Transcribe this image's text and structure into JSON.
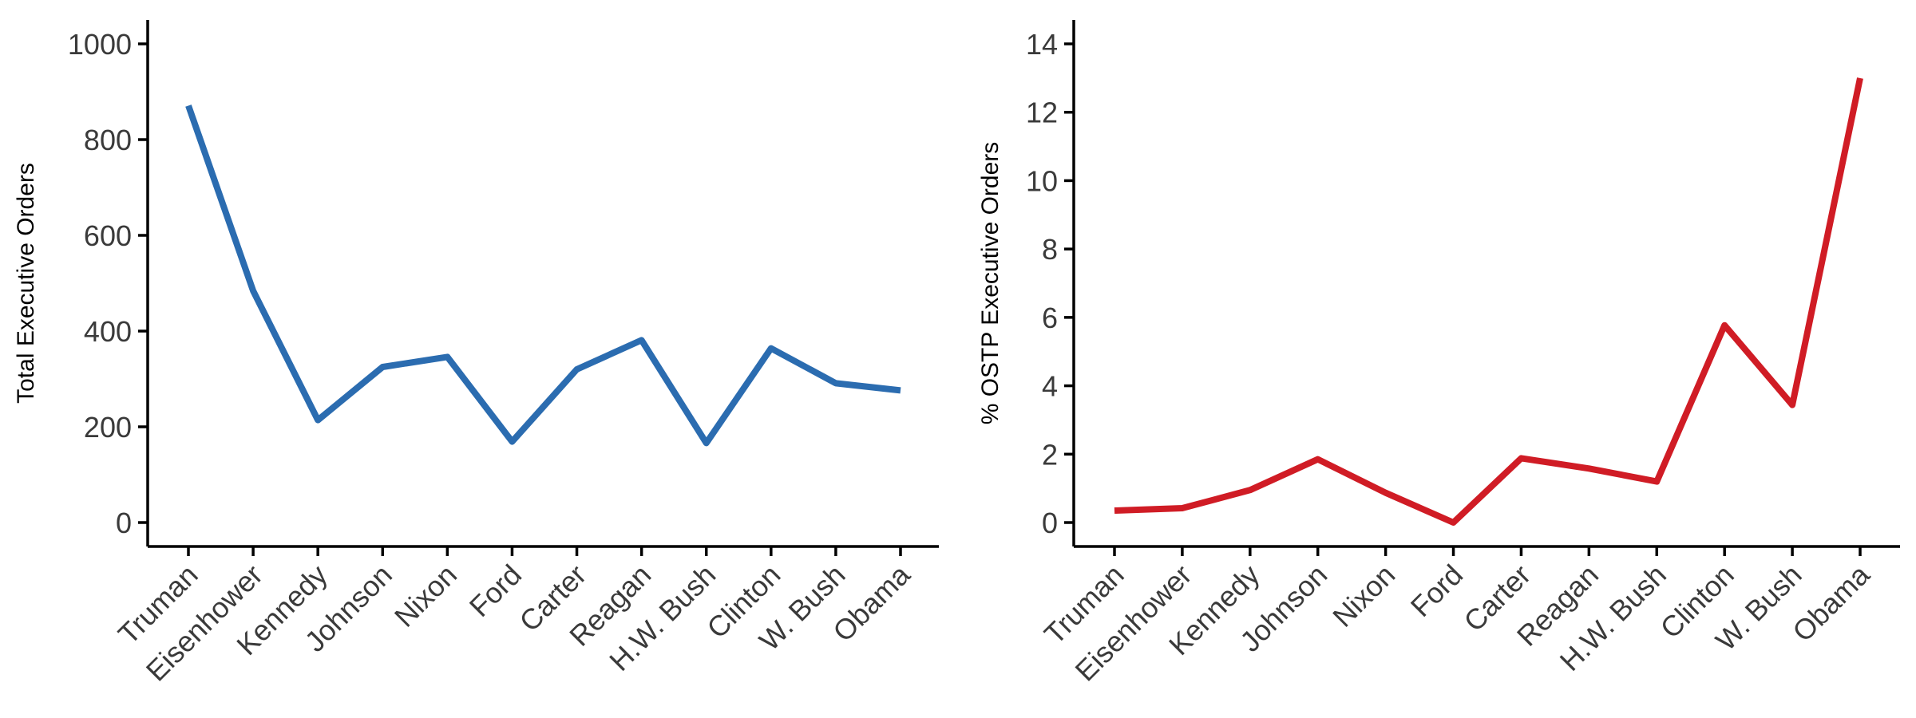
{
  "chart_data": [
    {
      "type": "line",
      "categories": [
        "Truman",
        "Eisenhower",
        "Kennedy",
        "Johnson",
        "Nixon",
        "Ford",
        "Carter",
        "Reagan",
        "H.W. Bush",
        "Clinton",
        "W. Bush",
        "Obama"
      ],
      "series": [
        {
          "values": [
            871,
            484,
            214,
            325,
            346,
            169,
            320,
            381,
            166,
            364,
            291,
            276
          ],
          "color": "#2b6cb0"
        }
      ],
      "xlabel": "",
      "ylabel": "Total Executive Orders",
      "ylim": [
        -50,
        1050
      ],
      "yticks": [
        0,
        200,
        400,
        600,
        800,
        1000
      ],
      "grid": false,
      "legend": "none"
    },
    {
      "type": "line",
      "categories": [
        "Truman",
        "Eisenhower",
        "Kennedy",
        "Johnson",
        "Nixon",
        "Ford",
        "Carter",
        "Reagan",
        "H.W. Bush",
        "Clinton",
        "W. Bush",
        "Obama"
      ],
      "series": [
        {
          "values": [
            0.35,
            0.42,
            0.95,
            1.85,
            0.87,
            0.0,
            1.88,
            1.58,
            1.2,
            5.77,
            3.44,
            13.0
          ],
          "color": "#d01c25"
        }
      ],
      "xlabel": "",
      "ylabel": "% OSTP Executive Orders",
      "ylim": [
        -0.7,
        14.7
      ],
      "yticks": [
        0,
        2,
        4,
        6,
        8,
        10,
        12,
        14
      ],
      "grid": false,
      "legend": "none"
    }
  ]
}
